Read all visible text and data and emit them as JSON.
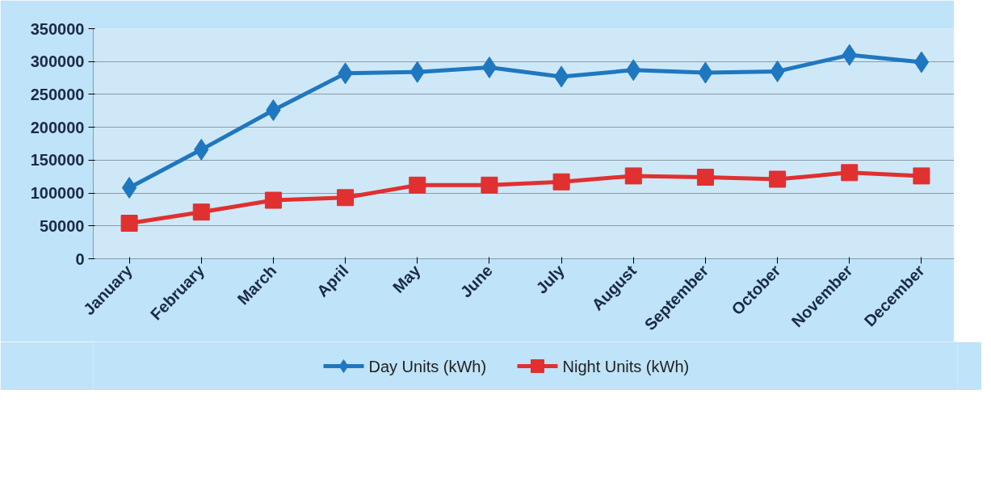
{
  "chart_data": {
    "type": "line",
    "categories": [
      "January",
      "February",
      "March",
      "April",
      "May",
      "June",
      "July",
      "August",
      "September",
      "October",
      "November",
      "December"
    ],
    "series": [
      {
        "name": "Day Units (kWh)",
        "color": "#1f77c0",
        "marker": "diamond",
        "values": [
          108000,
          166000,
          226000,
          282000,
          284000,
          291000,
          277000,
          287000,
          283000,
          285000,
          310000,
          299000
        ]
      },
      {
        "name": "Night Units (kWh)",
        "color": "#e03030",
        "marker": "square",
        "values": [
          54000,
          71000,
          89000,
          93000,
          112000,
          112000,
          117000,
          126000,
          124000,
          121000,
          131000,
          126000
        ]
      }
    ],
    "ylim": [
      0,
      350000
    ],
    "yticks": [
      0,
      50000,
      100000,
      150000,
      200000,
      250000,
      300000,
      350000
    ],
    "grid": "y",
    "legend": "bottom",
    "line_style": "solid"
  }
}
